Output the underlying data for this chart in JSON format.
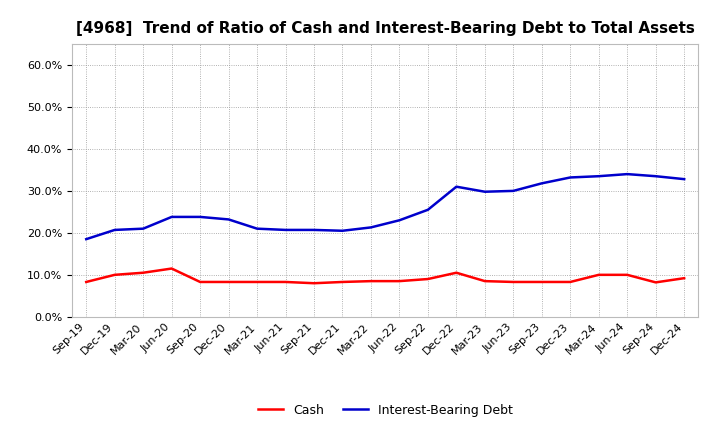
{
  "title": "[4968]  Trend of Ratio of Cash and Interest-Bearing Debt to Total Assets",
  "x_labels": [
    "Sep-19",
    "Dec-19",
    "Mar-20",
    "Jun-20",
    "Sep-20",
    "Dec-20",
    "Mar-21",
    "Jun-21",
    "Sep-21",
    "Dec-21",
    "Mar-22",
    "Jun-22",
    "Sep-22",
    "Dec-22",
    "Mar-23",
    "Jun-23",
    "Sep-23",
    "Dec-23",
    "Mar-24",
    "Jun-24",
    "Sep-24",
    "Dec-24"
  ],
  "cash": [
    0.083,
    0.1,
    0.105,
    0.115,
    0.083,
    0.083,
    0.083,
    0.083,
    0.08,
    0.083,
    0.085,
    0.085,
    0.09,
    0.105,
    0.085,
    0.083,
    0.083,
    0.083,
    0.1,
    0.1,
    0.082,
    0.092
  ],
  "interest_bearing_debt": [
    0.185,
    0.207,
    0.21,
    0.238,
    0.238,
    0.232,
    0.21,
    0.207,
    0.207,
    0.205,
    0.213,
    0.23,
    0.255,
    0.31,
    0.298,
    0.3,
    0.318,
    0.332,
    0.335,
    0.34,
    0.335,
    0.328
  ],
  "cash_color": "#ff0000",
  "debt_color": "#0000cc",
  "background_color": "#ffffff",
  "grid_color": "#999999",
  "ylim": [
    0.0,
    0.65
  ],
  "yticks": [
    0.0,
    0.1,
    0.2,
    0.3,
    0.4,
    0.5,
    0.6
  ],
  "legend_cash": "Cash",
  "legend_debt": "Interest-Bearing Debt",
  "title_fontsize": 11,
  "tick_fontsize": 8,
  "legend_fontsize": 9
}
